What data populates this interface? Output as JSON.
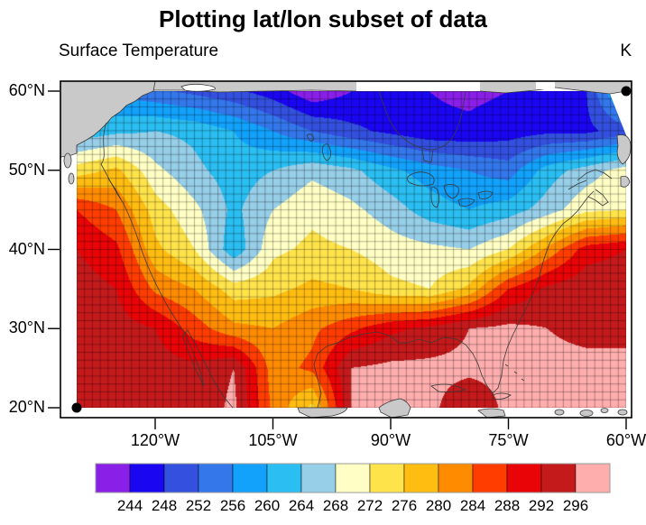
{
  "title": "Plotting lat/lon subset of data",
  "subtitle_left": "Surface Temperature",
  "subtitle_right": "K",
  "axes": {
    "y_ticks": [
      {
        "label": "60°N",
        "lat": 60
      },
      {
        "label": "50°N",
        "lat": 50
      },
      {
        "label": "40°N",
        "lat": 40
      },
      {
        "label": "30°N",
        "lat": 30
      },
      {
        "label": "20°N",
        "lat": 20
      }
    ],
    "x_ticks": [
      {
        "label": "120°W",
        "lon": -120
      },
      {
        "label": "105°W",
        "lon": -105
      },
      {
        "label": "90°W",
        "lon": -90
      },
      {
        "label": "75°W",
        "lon": -75
      },
      {
        "label": "60°W",
        "lon": -60
      }
    ]
  },
  "colorbar": {
    "labels": [
      "244",
      "248",
      "252",
      "256",
      "260",
      "264",
      "268",
      "272",
      "276",
      "280",
      "284",
      "288",
      "292",
      "296"
    ],
    "colors": [
      "#8A1FE8",
      "#1B06F2",
      "#3350DE",
      "#3377EB",
      "#12A1FB",
      "#2ABEF2",
      "#97CEE8",
      "#FFFFC5",
      "#FFE34B",
      "#FFBD12",
      "#FF8C00",
      "#FF3D00",
      "#E80407",
      "#C41A1C",
      "#FFAEAE"
    ]
  },
  "map_colors": {
    "land_gray": "#C9C9C9",
    "coastline": "#3a3a3a",
    "mesh_line": "rgba(0,0,0,0.55)",
    "frame": "#000000"
  },
  "chart_data": {
    "type": "heatmap",
    "title": "Plotting lat/lon subset of data",
    "field_name": "Surface Temperature",
    "units": "K",
    "projection": "cylindrical-equidistant",
    "lon_range": [
      -130,
      -60
    ],
    "lat_range": [
      20,
      60
    ],
    "levels": [
      244,
      248,
      252,
      256,
      260,
      264,
      268,
      272,
      276,
      280,
      284,
      288,
      292,
      296
    ],
    "level_colors": [
      "#8A1FE8",
      "#1B06F2",
      "#3350DE",
      "#3377EB",
      "#12A1FB",
      "#2ABEF2",
      "#97CEE8",
      "#FFFFC5",
      "#FFE34B",
      "#FFBD12",
      "#FF8C00",
      "#FF3D00",
      "#E80407",
      "#C41A1C",
      "#FFAEAE"
    ],
    "grid_mesh_spacing_deg": 1,
    "corner_markers": [
      {
        "lat": 20,
        "lon": -130
      },
      {
        "lat": 60,
        "lon": -60
      }
    ],
    "lons": [
      -130,
      -125,
      -120,
      -115,
      -110,
      -105,
      -100,
      -95,
      -90,
      -85,
      -80,
      -75,
      -70,
      -65,
      -60
    ],
    "lats": [
      60,
      55,
      50,
      45,
      40,
      35,
      30,
      25,
      20
    ],
    "values": [
      [
        256,
        255,
        253,
        251,
        249,
        246,
        241,
        244,
        246,
        244,
        243,
        244,
        245,
        248,
        264
      ],
      [
        261,
        263,
        264,
        263,
        260,
        256,
        252,
        249,
        247,
        245,
        245,
        246,
        247,
        247,
        250
      ],
      [
        274,
        277,
        269,
        265,
        262,
        264,
        267,
        265,
        261,
        258,
        256,
        254,
        262,
        266,
        270
      ],
      [
        288,
        284,
        274,
        269,
        263,
        268,
        271,
        269,
        266,
        262,
        260,
        262,
        266,
        271,
        272
      ],
      [
        292,
        289,
        277,
        272,
        261,
        271,
        273,
        272,
        270,
        269,
        268,
        272,
        281,
        290,
        292
      ],
      [
        294,
        292,
        283,
        280,
        274,
        275,
        277,
        276,
        273,
        272,
        277,
        288,
        293,
        295,
        295
      ],
      [
        295,
        294,
        292,
        286,
        281,
        280,
        283,
        287,
        291,
        293,
        296,
        297,
        296,
        295,
        295
      ],
      [
        295,
        295,
        294,
        293,
        296,
        282,
        285,
        296,
        297,
        297,
        297,
        297,
        297,
        297,
        297
      ],
      [
        294,
        294,
        294,
        293,
        297,
        283,
        275,
        296,
        297,
        297,
        293,
        297,
        297,
        297,
        297
      ]
    ]
  }
}
